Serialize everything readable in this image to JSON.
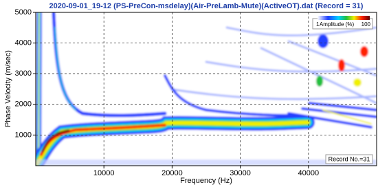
{
  "chart_data": {
    "type": "heatmap",
    "title": "2020-09-01_19-12 (PS-PreCon-msdelay)(Air-PreLamb-Mute)(ActiveOT).dat (Record = 31)",
    "x_label": "Frequency (Hz)",
    "y_label": "Phase Velocity (m/sec)",
    "xlim": [
      0,
      50000
    ],
    "xticks": [
      10000,
      20000,
      30000,
      40000
    ],
    "ylim": [
      0,
      5000
    ],
    "yticks": [
      1000,
      2000,
      3000,
      4000,
      5000
    ],
    "grid": true,
    "colorbar": {
      "label": "Amplitude (%)",
      "ticks": [
        1,
        100
      ]
    },
    "annotation": "Record No.=31"
  }
}
